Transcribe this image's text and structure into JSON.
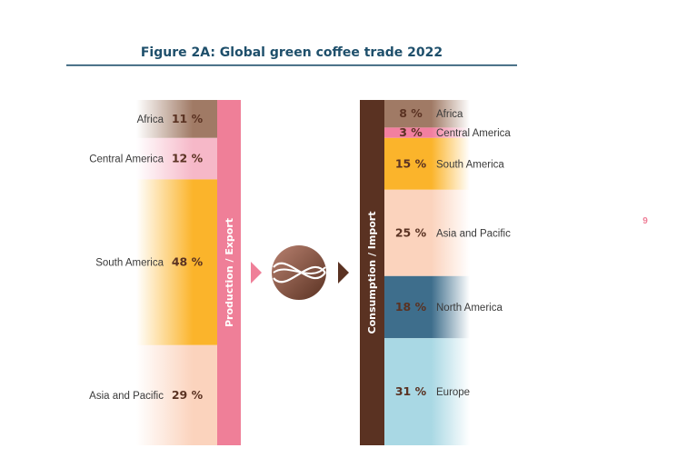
{
  "page_number": "9",
  "chart_data": {
    "type": "bar",
    "title": "Figure 2A: Global green coffee trade 2022",
    "unit": "%",
    "colors": {
      "title": "#1e4f6b",
      "rule": "#1e4f6b",
      "export_bar": "#ef7f98",
      "import_bar": "#5a3222",
      "value_text": "#5a3222",
      "label_text": "#3a3a3a",
      "arrow": "#ef7f98",
      "arrow_right": "#5a3222",
      "page_number": "#ef7f98"
    },
    "export": {
      "bar_label": "Production / Export",
      "segments": [
        {
          "name": "Africa",
          "value": 11,
          "value_label": "11 %",
          "color": "#a07a65"
        },
        {
          "name": "Central America",
          "value": 12,
          "value_label": "12 %",
          "color": "#f6b8c8"
        },
        {
          "name": "South America",
          "value": 48,
          "value_label": "48 %",
          "color": "#fbb42b"
        },
        {
          "name": "Asia and Pacific",
          "value": 29,
          "value_label": "29 %",
          "color": "#fbd3bd"
        }
      ]
    },
    "import": {
      "bar_label": "Consumption / Import",
      "segments": [
        {
          "name": "Africa",
          "value": 8,
          "value_label": "8 %",
          "color": "#a07a65"
        },
        {
          "name": "Central America",
          "value": 3,
          "value_label": "3 %",
          "color": "#f27fa0"
        },
        {
          "name": "South America",
          "value": 15,
          "value_label": "15 %",
          "color": "#fbb42b"
        },
        {
          "name": "Asia and Pacific",
          "value": 25,
          "value_label": "25 %",
          "color": "#fbd3bd"
        },
        {
          "name": "North America",
          "value": 18,
          "value_label": "18 %",
          "color": "#3e6e8c"
        },
        {
          "name": "Europe",
          "value": 31,
          "value_label": "31 %",
          "color": "#a9d8e4"
        }
      ]
    }
  }
}
